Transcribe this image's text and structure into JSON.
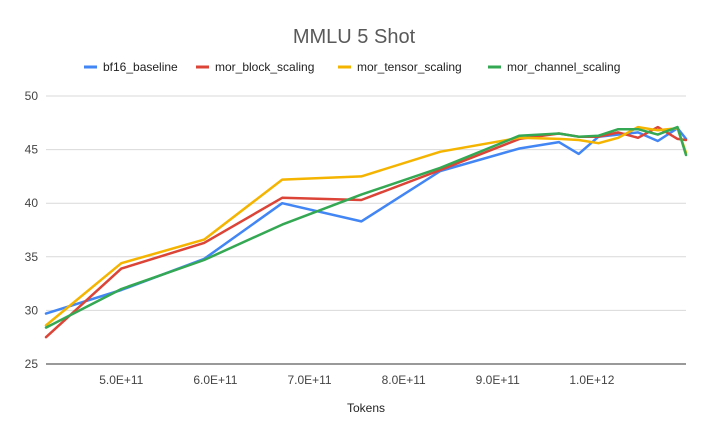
{
  "chart_data": {
    "type": "line",
    "title": "MMLU 5 Shot",
    "xlabel": "Tokens",
    "ylabel": "",
    "xlim": [
      420000000000,
      1100000000000
    ],
    "ylim": [
      25,
      50
    ],
    "grid": true,
    "legend_position": "top",
    "x_ticks": [
      {
        "value": 500000000000,
        "label": "5.0E+11"
      },
      {
        "value": 600000000000,
        "label": "6.0E+11"
      },
      {
        "value": 700000000000,
        "label": "7.0E+11"
      },
      {
        "value": 800000000000,
        "label": "8.0E+11"
      },
      {
        "value": 900000000000,
        "label": "9.0E+11"
      },
      {
        "value": 1000000000000,
        "label": "1.0E+12"
      }
    ],
    "y_ticks": [
      {
        "value": 25,
        "label": "25"
      },
      {
        "value": 30,
        "label": "30"
      },
      {
        "value": 35,
        "label": "35"
      },
      {
        "value": 40,
        "label": "40"
      },
      {
        "value": 45,
        "label": "45"
      },
      {
        "value": 50,
        "label": "50"
      }
    ],
    "series": [
      {
        "name": "bf16_baseline",
        "color": "#4285f4",
        "points": [
          [
            420000000000,
            29.7
          ],
          [
            500000000000,
            31.9
          ],
          [
            588000000000,
            34.8
          ],
          [
            671000000000,
            40.0
          ],
          [
            755000000000,
            38.3
          ],
          [
            839000000000,
            43.0
          ],
          [
            923000000000,
            45.1
          ],
          [
            965000000000,
            45.7
          ],
          [
            986000000000,
            44.6
          ],
          [
            1007000000000,
            46.2
          ],
          [
            1049000000000,
            46.6
          ],
          [
            1070000000000,
            45.8
          ],
          [
            1091000000000,
            47.0
          ],
          [
            1100000000000,
            46.0
          ]
        ]
      },
      {
        "name": "mor_block_scaling",
        "color": "#db4437",
        "points": [
          [
            420000000000,
            27.5
          ],
          [
            500000000000,
            33.9
          ],
          [
            588000000000,
            36.3
          ],
          [
            671000000000,
            40.5
          ],
          [
            755000000000,
            40.3
          ],
          [
            839000000000,
            43.1
          ],
          [
            923000000000,
            46.0
          ],
          [
            965000000000,
            46.5
          ],
          [
            986000000000,
            46.2
          ],
          [
            1007000000000,
            46.2
          ],
          [
            1028000000000,
            46.6
          ],
          [
            1049000000000,
            46.1
          ],
          [
            1070000000000,
            47.1
          ],
          [
            1091000000000,
            46.0
          ],
          [
            1100000000000,
            45.9
          ]
        ]
      },
      {
        "name": "mor_tensor_scaling",
        "color": "#f4b400",
        "points": [
          [
            420000000000,
            28.6
          ],
          [
            500000000000,
            34.4
          ],
          [
            588000000000,
            36.6
          ],
          [
            671000000000,
            42.2
          ],
          [
            755000000000,
            42.5
          ],
          [
            839000000000,
            44.8
          ],
          [
            923000000000,
            46.1
          ],
          [
            965000000000,
            46.0
          ],
          [
            986000000000,
            45.9
          ],
          [
            1007000000000,
            45.6
          ],
          [
            1028000000000,
            46.1
          ],
          [
            1049000000000,
            47.1
          ],
          [
            1070000000000,
            46.8
          ],
          [
            1091000000000,
            47.0
          ],
          [
            1100000000000,
            44.7
          ]
        ]
      },
      {
        "name": "mor_channel_scaling",
        "color": "#34a853",
        "points": [
          [
            420000000000,
            28.4
          ],
          [
            500000000000,
            32.0
          ],
          [
            588000000000,
            34.7
          ],
          [
            671000000000,
            38.0
          ],
          [
            755000000000,
            40.8
          ],
          [
            839000000000,
            43.3
          ],
          [
            923000000000,
            46.3
          ],
          [
            965000000000,
            46.5
          ],
          [
            986000000000,
            46.2
          ],
          [
            1007000000000,
            46.3
          ],
          [
            1028000000000,
            46.9
          ],
          [
            1049000000000,
            46.9
          ],
          [
            1070000000000,
            46.4
          ],
          [
            1091000000000,
            47.1
          ],
          [
            1100000000000,
            44.5
          ]
        ]
      }
    ]
  }
}
